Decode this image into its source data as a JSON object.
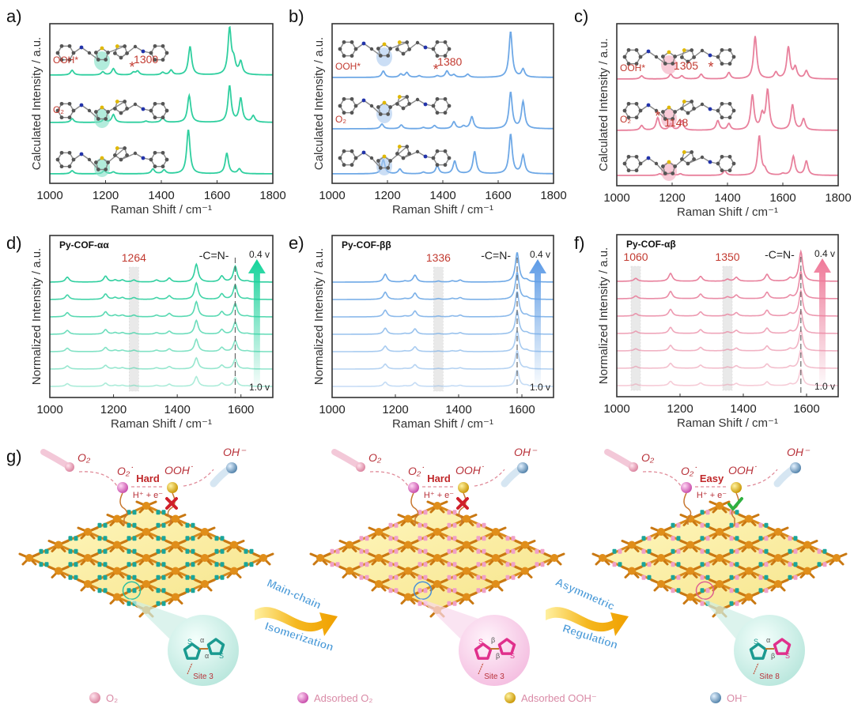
{
  "panel_labels": [
    "a)",
    "b)",
    "c)",
    "d)",
    "e)",
    "f)",
    "g)"
  ],
  "colors": {
    "alpha_alpha": "#2fcf9f",
    "beta_beta": "#6ea8e6",
    "alpha_beta": "#e8809c",
    "annotation": "#c23a30"
  },
  "chart_data": [
    {
      "id": "a",
      "type": "line",
      "xlabel": "Raman Shift / cm⁻¹",
      "ylabel": "Calculated Intensity / a.u.",
      "xlim": [
        1000,
        1800
      ],
      "xticks": [
        "1000",
        "1200",
        "1400",
        "1600",
        "1800"
      ],
      "grid": false,
      "series": [
        {
          "name": "OOH*",
          "peaks": [
            [
              1080,
              0.15
            ],
            [
              1190,
              0.1
            ],
            [
              1228,
              0.2
            ],
            [
              1300,
              0.08
            ],
            [
              1315,
              0.12
            ],
            [
              1405,
              0.08
            ],
            [
              1435,
              0.15
            ],
            [
              1503,
              0.9
            ],
            [
              1645,
              1.45
            ],
            [
              1660,
              0.4
            ],
            [
              1685,
              0.4
            ]
          ]
        },
        {
          "name": "O₂",
          "peaks": [
            [
              1080,
              0.12
            ],
            [
              1195,
              0.1
            ],
            [
              1228,
              0.25
            ],
            [
              1345,
              0.04
            ],
            [
              1405,
              0.15
            ],
            [
              1500,
              0.85
            ],
            [
              1645,
              1.15
            ],
            [
              1685,
              0.75
            ],
            [
              1730,
              0.2
            ]
          ]
        },
        {
          "name": "",
          "peaks": [
            [
              1080,
              0.1
            ],
            [
              1195,
              0.1
            ],
            [
              1228,
              0.06
            ],
            [
              1370,
              0.15
            ],
            [
              1410,
              0.12
            ],
            [
              1497,
              1.4
            ],
            [
              1635,
              0.65
            ],
            [
              1680,
              0.15
            ]
          ]
        }
      ],
      "annotations": [
        {
          "series": 0,
          "text": "1300",
          "marker": "*",
          "x": 1300
        }
      ]
    },
    {
      "id": "b",
      "type": "line",
      "xlabel": "Raman Shift / cm⁻¹",
      "ylabel": "Calculated Intensity / a.u.",
      "xlim": [
        1000,
        1800
      ],
      "xticks": [
        "1000",
        "1200",
        "1400",
        "1600",
        "1800"
      ],
      "grid": false,
      "series": [
        {
          "name": "OOH*",
          "peaks": [
            [
              1185,
              0.2
            ],
            [
              1248,
              0.1
            ],
            [
              1270,
              0.15
            ],
            [
              1315,
              0.05
            ],
            [
              1380,
              0.05
            ],
            [
              1415,
              0.2
            ],
            [
              1440,
              0.08
            ],
            [
              1490,
              0.1
            ],
            [
              1645,
              1.45
            ],
            [
              1690,
              0.25
            ]
          ]
        },
        {
          "name": "O₂",
          "peaks": [
            [
              1180,
              0.15
            ],
            [
              1250,
              0.12
            ],
            [
              1330,
              0.04
            ],
            [
              1370,
              0.1
            ],
            [
              1440,
              0.22
            ],
            [
              1475,
              0.08
            ],
            [
              1505,
              0.38
            ],
            [
              1645,
              1.15
            ],
            [
              1690,
              0.85
            ]
          ]
        },
        {
          "name": "",
          "peaks": [
            [
              1185,
              0.45
            ],
            [
              1245,
              0.15
            ],
            [
              1330,
              0.05
            ],
            [
              1380,
              0.25
            ],
            [
              1443,
              0.4
            ],
            [
              1515,
              0.7
            ],
            [
              1645,
              1.25
            ],
            [
              1690,
              0.58
            ]
          ]
        }
      ],
      "annotations": [
        {
          "series": 0,
          "text": "1380",
          "marker": "*",
          "x": 1380
        }
      ]
    },
    {
      "id": "c",
      "type": "line",
      "xlabel": "Raman Shift / cm⁻¹",
      "ylabel": "Calculated Intensity / a.u.",
      "xlim": [
        1000,
        1800
      ],
      "xticks": [
        "1000",
        "1200",
        "1400",
        "1600",
        "1800"
      ],
      "grid": false,
      "series": [
        {
          "name": "OOH*",
          "peaks": [
            [
              1090,
              0.1
            ],
            [
              1195,
              0.15
            ],
            [
              1235,
              0.1
            ],
            [
              1305,
              0.15
            ],
            [
              1405,
              0.2
            ],
            [
              1500,
              1.35
            ],
            [
              1575,
              0.2
            ],
            [
              1620,
              1.0
            ],
            [
              1645,
              0.35
            ],
            [
              1685,
              0.25
            ]
          ]
        },
        {
          "name": "O₂",
          "peaks": [
            [
              1090,
              0.15
            ],
            [
              1148,
              0.4
            ],
            [
              1195,
              0.2
            ],
            [
              1235,
              0.3
            ],
            [
              1365,
              0.3
            ],
            [
              1405,
              0.2
            ],
            [
              1490,
              1.1
            ],
            [
              1525,
              0.45
            ],
            [
              1545,
              1.25
            ],
            [
              1635,
              0.8
            ],
            [
              1675,
              0.35
            ]
          ]
        },
        {
          "name": "",
          "peaks": [
            [
              1155,
              0.05
            ],
            [
              1195,
              0.1
            ],
            [
              1230,
              0.05
            ],
            [
              1390,
              0.15
            ],
            [
              1515,
              1.25
            ],
            [
              1535,
              0.15
            ],
            [
              1600,
              0.05
            ],
            [
              1638,
              0.6
            ],
            [
              1685,
              0.45
            ]
          ]
        }
      ],
      "annotations": [
        {
          "series": 0,
          "text": "1305",
          "marker": "*",
          "x": 1305
        },
        {
          "series": 1,
          "text": "1148",
          "marker": "*",
          "x": 1148
        }
      ]
    },
    {
      "id": "d",
      "type": "line",
      "title": "Py-COF-αα",
      "xlabel": "Raman Shift / cm⁻¹",
      "ylabel": "Normalized Intensity / a.u.",
      "xlim": [
        1000,
        1700
      ],
      "xticks": [
        "1000",
        "1200",
        "1400",
        "1600"
      ],
      "grid": false,
      "potential_range": {
        "top": "0.4 v",
        "bottom": "1.0 v",
        "traces": 7
      },
      "peaks": [
        [
          1055,
          0.25
        ],
        [
          1175,
          0.3
        ],
        [
          1205,
          0.1
        ],
        [
          1228,
          0.1
        ],
        [
          1264,
          0.1
        ],
        [
          1335,
          0.1
        ],
        [
          1375,
          0.2
        ],
        [
          1460,
          0.9
        ],
        [
          1540,
          0.3
        ],
        [
          1582,
          0.8
        ],
        [
          1620,
          0.05
        ]
      ],
      "highlight_bands": [
        {
          "center": 1264,
          "label": "1264"
        }
      ],
      "reference_line": {
        "x": 1582,
        "label": "-C=N-"
      }
    },
    {
      "id": "e",
      "type": "line",
      "title": "Py-COF-ββ",
      "xlabel": "Raman Shift / cm⁻¹",
      "ylabel": "Normalized Intensity / a.u.",
      "xlim": [
        1000,
        1700
      ],
      "xticks": [
        "1000",
        "1200",
        "1400",
        "1600"
      ],
      "grid": false,
      "potential_range": {
        "top": "0.4 v",
        "bottom": "1.0 v",
        "traces": 7
      },
      "peaks": [
        [
          1168,
          0.4
        ],
        [
          1230,
          0.05
        ],
        [
          1262,
          0.35
        ],
        [
          1336,
          0.05
        ],
        [
          1380,
          0.06
        ],
        [
          1405,
          0.1
        ],
        [
          1585,
          1.5
        ],
        [
          1615,
          0.1
        ]
      ],
      "highlight_bands": [
        {
          "center": 1336,
          "label": "1336"
        }
      ],
      "reference_line": {
        "x": 1585,
        "label": "-C=N-"
      }
    },
    {
      "id": "f",
      "type": "line",
      "title": "Py-COF-αβ",
      "xlabel": "Raman Shift / cm⁻¹",
      "ylabel": "Normalized Intensity / a.u.",
      "xlim": [
        1000,
        1700
      ],
      "xticks": [
        "1000",
        "1200",
        "1400",
        "1600"
      ],
      "grid": false,
      "potential_range": {
        "top": "0.4 v",
        "bottom": "1.0 v",
        "traces": 7
      },
      "peaks": [
        [
          1060,
          0.15
        ],
        [
          1170,
          0.4
        ],
        [
          1265,
          0.25
        ],
        [
          1350,
          0.1
        ],
        [
          1378,
          0.2
        ],
        [
          1475,
          0.35
        ],
        [
          1548,
          0.15
        ],
        [
          1582,
          1.5
        ]
      ],
      "highlight_bands": [
        {
          "center": 1060,
          "label": "1060"
        },
        {
          "center": 1350,
          "label": "1350"
        }
      ],
      "reference_line": {
        "x": 1582,
        "label": "-C=N-"
      }
    }
  ],
  "schematic": {
    "panels": [
      {
        "o2": "O₂",
        "o2_ads": "O₂˙",
        "step": "Hard",
        "proton": "H⁺ + e⁻",
        "ooh": "OOH˙",
        "oh": "OH⁻",
        "result": "blocked",
        "site": "Site 3",
        "bond": [
          "α",
          "α"
        ],
        "linker": "teal"
      },
      {
        "o2": "O₂",
        "o2_ads": "O₂˙",
        "step": "Hard",
        "proton": "H⁺ + e⁻",
        "ooh": "OOH˙",
        "oh": "OH⁻",
        "result": "blocked",
        "site": "Site 3",
        "bond": [
          "β",
          "β"
        ],
        "linker": "pink"
      },
      {
        "o2": "O₂",
        "o2_ads": "O₂˙",
        "step": "Easy",
        "proton": "H⁺ + e⁻",
        "ooh": "OOH˙",
        "oh": "OH⁻",
        "result": "success",
        "site": "Site 8",
        "bond": [
          "α",
          "β"
        ],
        "linker": "mixed"
      }
    ],
    "transitions": [
      {
        "line1": "Main-chain",
        "line2": "Isomerization"
      },
      {
        "line1": "Asymmetric",
        "line2": "Regulation"
      }
    ],
    "sulfur": "S",
    "legend": [
      {
        "label": "O₂",
        "color": "#e8a0b8"
      },
      {
        "label": "Adsorbed O₂",
        "color": "#d968c0"
      },
      {
        "label": "Adsorbed OOH⁻",
        "color": "#e0b000"
      },
      {
        "label": "OH⁻",
        "color": "#6f9cc2"
      }
    ]
  }
}
